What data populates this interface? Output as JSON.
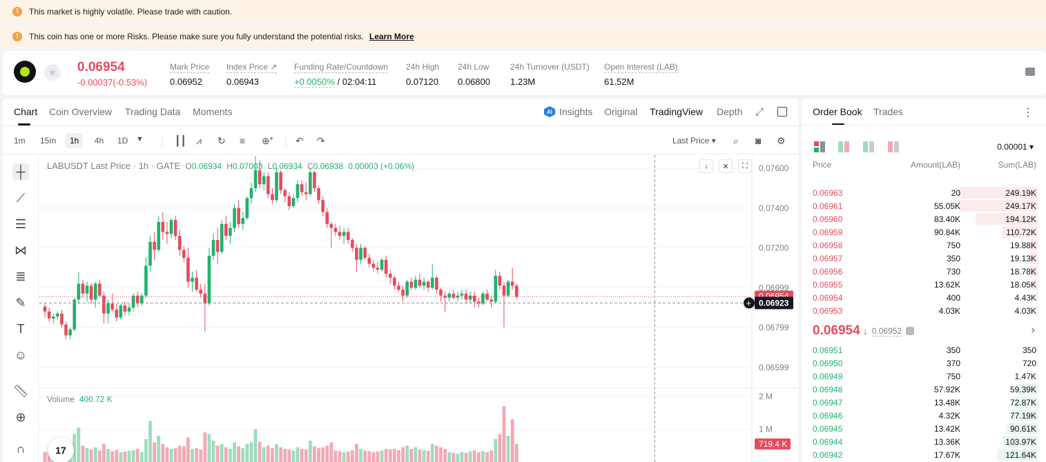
{
  "banners": {
    "volatility": "This market is highly volatile. Please trade with caution.",
    "risk": "This coin has one or more Risks. Please make sure you fully understand the potential risks.",
    "learn_more": "Learn More"
  },
  "ticker": {
    "last_price": "0.06954",
    "change": "-0.00037(-0.53%)",
    "mark_price_label": "Mark Price",
    "mark_price": "0.06952",
    "index_price_label": "Index Price",
    "index_price": "0.06943",
    "funding_label": "Funding Rate/Countdown",
    "funding_rate": "+0.0050%",
    "countdown": "/ 02:04:11",
    "high_label": "24h High",
    "high": "0.07120",
    "low_label": "24h Low",
    "low": "0.06800",
    "turnover_label": "24h Turnover (USDT)",
    "turnover": "1.23M",
    "oi_label": "Open Interest (LAB)",
    "oi": "61.52M"
  },
  "chart_tabs": [
    "Chart",
    "Coin Overview",
    "Trading Data",
    "Moments"
  ],
  "chart_views": {
    "insights": "Insights",
    "original": "Original",
    "tradingview": "TradingView",
    "depth": "Depth"
  },
  "timeframes": [
    "1m",
    "15m",
    "1h",
    "4h",
    "1D"
  ],
  "price_type": "Last Price",
  "legend": {
    "symbol": "LABUSDT Last Price · 1h · GATE",
    "o_label": "O",
    "o": "0.06934",
    "h_label": "H",
    "h": "0.07003",
    "l_label": "L",
    "l": "0.06934",
    "c_label": "C",
    "c": "0.06938",
    "chg": "0.00003 (+0.06%)"
  },
  "volume": {
    "label": "Volume",
    "value": "400.72 K",
    "current": "719.4 K",
    "axis": [
      "2 M",
      "1 M"
    ]
  },
  "price_axis": [
    "0.07600",
    "0.07400",
    "0.07200",
    "0.06999",
    "0.06799",
    "0.06599"
  ],
  "crosshair_price": "0.06923",
  "last_price_marker": "0.06954",
  "colors": {
    "up": "#20b26c",
    "down": "#e64b5d",
    "up_vol": "#9fdcbe",
    "down_vol": "#f3a9b3"
  },
  "chart_data": {
    "type": "candlestick",
    "ylim": [
      0.06505,
      0.07666
    ],
    "candles": [
      [
        0.06905,
        0.06925,
        0.0685,
        0.0688,
        0.3
      ],
      [
        0.0688,
        0.069,
        0.0683,
        0.06845,
        0.35
      ],
      [
        0.06845,
        0.0687,
        0.0682,
        0.06855,
        0.28
      ],
      [
        0.06855,
        0.0688,
        0.0684,
        0.0687,
        0.22
      ],
      [
        0.0687,
        0.0689,
        0.068,
        0.06815,
        0.4
      ],
      [
        0.06815,
        0.0683,
        0.0674,
        0.0676,
        0.48
      ],
      [
        0.0676,
        0.068,
        0.0674,
        0.0679,
        0.55
      ],
      [
        0.0679,
        0.0695,
        0.0678,
        0.0694,
        0.85
      ],
      [
        0.0694,
        0.0708,
        0.0692,
        0.0702,
        1.05
      ],
      [
        0.0702,
        0.0704,
        0.0695,
        0.0697,
        0.5
      ],
      [
        0.0697,
        0.0703,
        0.0693,
        0.0701,
        0.42
      ],
      [
        0.0701,
        0.0702,
        0.0692,
        0.0694,
        0.38
      ],
      [
        0.0694,
        0.0703,
        0.069,
        0.0702,
        0.45
      ],
      [
        0.0702,
        0.0704,
        0.0695,
        0.0696,
        0.35
      ],
      [
        0.0696,
        0.0698,
        0.0682,
        0.0687,
        0.55
      ],
      [
        0.0687,
        0.0694,
        0.0682,
        0.0692,
        0.4
      ],
      [
        0.0692,
        0.0697,
        0.0688,
        0.0689,
        0.33
      ],
      [
        0.0689,
        0.0692,
        0.0683,
        0.0685,
        0.37
      ],
      [
        0.0685,
        0.0692,
        0.0684,
        0.0691,
        0.3
      ],
      [
        0.0691,
        0.0693,
        0.0686,
        0.0688,
        0.32
      ],
      [
        0.0688,
        0.0692,
        0.0686,
        0.069,
        0.34
      ],
      [
        0.069,
        0.0697,
        0.0688,
        0.0696,
        0.36
      ],
      [
        0.0696,
        0.0698,
        0.069,
        0.0692,
        0.4
      ],
      [
        0.0692,
        0.0697,
        0.0691,
        0.0696,
        0.3
      ],
      [
        0.0696,
        0.0715,
        0.0695,
        0.0711,
        0.7
      ],
      [
        0.0711,
        0.0726,
        0.0708,
        0.0723,
        1.25
      ],
      [
        0.0723,
        0.0728,
        0.0714,
        0.0719,
        0.6
      ],
      [
        0.0719,
        0.0736,
        0.0718,
        0.0733,
        0.8
      ],
      [
        0.0733,
        0.0738,
        0.0724,
        0.0728,
        0.55
      ],
      [
        0.0728,
        0.0733,
        0.0722,
        0.0727,
        0.45
      ],
      [
        0.0727,
        0.0735,
        0.0725,
        0.0734,
        0.4
      ],
      [
        0.0734,
        0.0736,
        0.0724,
        0.0726,
        0.42
      ],
      [
        0.0726,
        0.0729,
        0.0716,
        0.0719,
        0.5
      ],
      [
        0.0719,
        0.0721,
        0.0713,
        0.0715,
        0.48
      ],
      [
        0.0715,
        0.072,
        0.07,
        0.0703,
        0.75
      ],
      [
        0.0703,
        0.0708,
        0.0698,
        0.0705,
        0.4
      ],
      [
        0.0705,
        0.0709,
        0.0698,
        0.0699,
        0.42
      ],
      [
        0.0699,
        0.0702,
        0.0695,
        0.0697,
        0.38
      ],
      [
        0.0697,
        0.0702,
        0.0678,
        0.0692,
        0.9
      ],
      [
        0.0692,
        0.072,
        0.0691,
        0.0716,
        0.85
      ],
      [
        0.0716,
        0.0727,
        0.0714,
        0.0724,
        0.65
      ],
      [
        0.0724,
        0.073,
        0.0712,
        0.0718,
        0.5
      ],
      [
        0.0718,
        0.0734,
        0.0717,
        0.0732,
        0.55
      ],
      [
        0.0732,
        0.0736,
        0.0724,
        0.0726,
        0.45
      ],
      [
        0.0726,
        0.0733,
        0.0722,
        0.073,
        0.4
      ],
      [
        0.073,
        0.0742,
        0.0728,
        0.074,
        0.6
      ],
      [
        0.074,
        0.0744,
        0.073,
        0.0732,
        0.48
      ],
      [
        0.0732,
        0.0738,
        0.0729,
        0.0735,
        0.42
      ],
      [
        0.0735,
        0.0746,
        0.0734,
        0.0745,
        0.55
      ],
      [
        0.0745,
        0.0753,
        0.0742,
        0.075,
        0.6
      ],
      [
        0.075,
        0.0766,
        0.0748,
        0.0759,
        1.0
      ],
      [
        0.0759,
        0.0764,
        0.075,
        0.0752,
        0.62
      ],
      [
        0.0752,
        0.0758,
        0.0749,
        0.0756,
        0.45
      ],
      [
        0.0756,
        0.0758,
        0.0745,
        0.0747,
        0.5
      ],
      [
        0.0747,
        0.075,
        0.0742,
        0.0744,
        0.42
      ],
      [
        0.0744,
        0.076,
        0.0743,
        0.0758,
        0.55
      ],
      [
        0.0758,
        0.0759,
        0.0747,
        0.0749,
        0.45
      ],
      [
        0.0749,
        0.075,
        0.0743,
        0.0746,
        0.4
      ],
      [
        0.0746,
        0.0748,
        0.0739,
        0.0741,
        0.38
      ],
      [
        0.0741,
        0.0747,
        0.074,
        0.0745,
        0.35
      ],
      [
        0.0745,
        0.0754,
        0.0743,
        0.0752,
        0.45
      ],
      [
        0.0752,
        0.0754,
        0.0746,
        0.0748,
        0.4
      ],
      [
        0.0748,
        0.0753,
        0.0744,
        0.0747,
        0.38
      ],
      [
        0.0747,
        0.076,
        0.0746,
        0.0758,
        0.65
      ],
      [
        0.0758,
        0.0759,
        0.0748,
        0.075,
        0.48
      ],
      [
        0.075,
        0.0751,
        0.0742,
        0.0744,
        0.42
      ],
      [
        0.0744,
        0.0746,
        0.0736,
        0.0738,
        0.45
      ],
      [
        0.0738,
        0.074,
        0.073,
        0.0732,
        0.5
      ],
      [
        0.0732,
        0.0733,
        0.072,
        0.073,
        0.6
      ],
      [
        0.073,
        0.0732,
        0.0726,
        0.0728,
        0.35
      ],
      [
        0.0728,
        0.0731,
        0.0724,
        0.0726,
        0.33
      ],
      [
        0.0726,
        0.073,
        0.0722,
        0.0728,
        0.3
      ],
      [
        0.0728,
        0.073,
        0.0722,
        0.0724,
        0.32
      ],
      [
        0.0724,
        0.0725,
        0.0718,
        0.072,
        0.36
      ],
      [
        0.072,
        0.0722,
        0.0708,
        0.0714,
        0.55
      ],
      [
        0.0714,
        0.0722,
        0.0712,
        0.072,
        0.4
      ],
      [
        0.072,
        0.0721,
        0.0714,
        0.0715,
        0.35
      ],
      [
        0.0715,
        0.0717,
        0.071,
        0.0712,
        0.33
      ],
      [
        0.0712,
        0.0714,
        0.0708,
        0.071,
        0.3
      ],
      [
        0.071,
        0.0713,
        0.0707,
        0.0709,
        0.32
      ],
      [
        0.0709,
        0.0715,
        0.0708,
        0.0714,
        0.35
      ],
      [
        0.0714,
        0.0716,
        0.0705,
        0.0707,
        0.4
      ],
      [
        0.0707,
        0.0709,
        0.0702,
        0.0705,
        0.38
      ],
      [
        0.0705,
        0.0706,
        0.0699,
        0.0701,
        0.4
      ],
      [
        0.0701,
        0.0703,
        0.0698,
        0.0699,
        0.36
      ],
      [
        0.0699,
        0.0701,
        0.0693,
        0.0696,
        0.45
      ],
      [
        0.0696,
        0.0704,
        0.0695,
        0.0703,
        0.5
      ],
      [
        0.0703,
        0.0705,
        0.0699,
        0.07,
        0.4
      ],
      [
        0.07,
        0.0706,
        0.0699,
        0.0704,
        0.45
      ],
      [
        0.0704,
        0.0707,
        0.07,
        0.0701,
        0.38
      ],
      [
        0.0701,
        0.0705,
        0.0699,
        0.0703,
        0.36
      ],
      [
        0.0703,
        0.0704,
        0.0698,
        0.07,
        0.34
      ],
      [
        0.07,
        0.0712,
        0.0699,
        0.0705,
        0.55
      ],
      [
        0.0705,
        0.0706,
        0.0697,
        0.0699,
        0.5
      ],
      [
        0.0699,
        0.07,
        0.0693,
        0.0696,
        0.45
      ],
      [
        0.0696,
        0.0698,
        0.0688,
        0.0695,
        0.4
      ],
      [
        0.0695,
        0.0698,
        0.0693,
        0.0697,
        0.3
      ],
      [
        0.0697,
        0.0699,
        0.0694,
        0.0695,
        0.28
      ],
      [
        0.0695,
        0.0698,
        0.0693,
        0.0696,
        0.25
      ],
      [
        0.0696,
        0.0699,
        0.0694,
        0.0697,
        0.3
      ],
      [
        0.0697,
        0.0699,
        0.0692,
        0.0694,
        0.28
      ],
      [
        0.0694,
        0.0698,
        0.0692,
        0.0696,
        0.32
      ],
      [
        0.0696,
        0.0698,
        0.069,
        0.0693,
        0.35
      ],
      [
        0.0693,
        0.0695,
        0.069,
        0.0692,
        0.3
      ],
      [
        0.0692,
        0.0698,
        0.0691,
        0.0697,
        0.33
      ],
      [
        0.0697,
        0.0699,
        0.0693,
        0.0694,
        0.3
      ],
      [
        0.0694,
        0.0696,
        0.069,
        0.0693,
        0.35
      ],
      [
        0.0693,
        0.0709,
        0.0692,
        0.0706,
        0.7
      ],
      [
        0.0706,
        0.0708,
        0.0699,
        0.0701,
        0.85
      ],
      [
        0.0701,
        0.0703,
        0.068,
        0.0696,
        1.7
      ],
      [
        0.0696,
        0.0704,
        0.0695,
        0.0703,
        0.8
      ],
      [
        0.0703,
        0.071,
        0.0699,
        0.0701,
        1.3
      ],
      [
        0.0701,
        0.0702,
        0.0694,
        0.06954,
        0.55
      ]
    ]
  },
  "orderbook": {
    "tabs": [
      "Order Book",
      "Trades"
    ],
    "precision": "0.00001",
    "headers": {
      "price": "Price",
      "amount": "Amount(LAB)",
      "sum": "Sum(LAB)"
    },
    "asks": [
      {
        "price": "0.06963",
        "amount": "20",
        "sum": "249.19K",
        "depth": 0.98
      },
      {
        "price": "0.06961",
        "amount": "55.05K",
        "sum": "249.17K",
        "depth": 0.97
      },
      {
        "price": "0.06960",
        "amount": "83.40K",
        "sum": "194.12K",
        "depth": 0.76
      },
      {
        "price": "0.06959",
        "amount": "90.84K",
        "sum": "110.72K",
        "depth": 0.44
      },
      {
        "price": "0.06958",
        "amount": "750",
        "sum": "19.88K",
        "depth": 0.09
      },
      {
        "price": "0.06957",
        "amount": "350",
        "sum": "19.13K",
        "depth": 0.09
      },
      {
        "price": "0.06956",
        "amount": "730",
        "sum": "18.78K",
        "depth": 0.09
      },
      {
        "price": "0.06955",
        "amount": "13.62K",
        "sum": "18.05K",
        "depth": 0.08
      },
      {
        "price": "0.06954",
        "amount": "400",
        "sum": "4.43K",
        "depth": 0.02
      },
      {
        "price": "0.06953",
        "amount": "4.03K",
        "sum": "4.03K",
        "depth": 0.02
      }
    ],
    "mid_price": "0.06954",
    "mid_mark": "0.06952",
    "bids": [
      {
        "price": "0.06951",
        "amount": "350",
        "sum": "350",
        "depth": 0.01
      },
      {
        "price": "0.06950",
        "amount": "370",
        "sum": "720",
        "depth": 0.01
      },
      {
        "price": "0.06949",
        "amount": "750",
        "sum": "1.47K",
        "depth": 0.01
      },
      {
        "price": "0.06948",
        "amount": "57.92K",
        "sum": "59.39K",
        "depth": 0.24
      },
      {
        "price": "0.06947",
        "amount": "13.48K",
        "sum": "72.87K",
        "depth": 0.3
      },
      {
        "price": "0.06946",
        "amount": "4.32K",
        "sum": "77.19K",
        "depth": 0.32
      },
      {
        "price": "0.06945",
        "amount": "13.42K",
        "sum": "90.61K",
        "depth": 0.38
      },
      {
        "price": "0.06944",
        "amount": "13.36K",
        "sum": "103.97K",
        "depth": 0.43
      },
      {
        "price": "0.06942",
        "amount": "17.67K",
        "sum": "121.64K",
        "depth": 0.5
      }
    ]
  }
}
